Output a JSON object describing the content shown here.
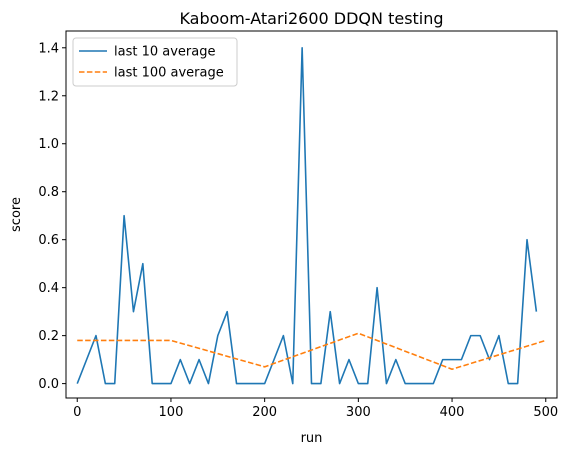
{
  "chart_data": {
    "type": "line",
    "title": "Kaboom-Atari2600 DDQN testing",
    "xlabel": "run",
    "ylabel": "score",
    "xlim": [
      -12,
      512
    ],
    "ylim": [
      -0.06,
      1.47
    ],
    "xticks": [
      0,
      100,
      200,
      300,
      400,
      500
    ],
    "yticks": [
      0.0,
      0.2,
      0.4,
      0.6,
      0.8,
      1.0,
      1.2,
      1.4
    ],
    "xtick_labels": [
      "0",
      "100",
      "200",
      "300",
      "400",
      "500"
    ],
    "ytick_labels": [
      "0.0",
      "0.2",
      "0.4",
      "0.6",
      "0.8",
      "1.0",
      "1.2",
      "1.4"
    ],
    "grid": false,
    "legend_position": "top-left",
    "series": [
      {
        "name": "last 10 average",
        "color": "#1f77b4",
        "style": "solid",
        "x": [
          0,
          10,
          20,
          30,
          40,
          50,
          60,
          70,
          80,
          90,
          100,
          110,
          120,
          130,
          140,
          150,
          160,
          170,
          180,
          190,
          200,
          210,
          220,
          230,
          240,
          250,
          260,
          270,
          280,
          290,
          300,
          310,
          320,
          330,
          340,
          350,
          360,
          370,
          380,
          390,
          400,
          410,
          420,
          430,
          440,
          450,
          460,
          470,
          480,
          490
        ],
        "y": [
          0.0,
          0.1,
          0.2,
          0.0,
          0.0,
          0.7,
          0.3,
          0.5,
          0.0,
          0.0,
          0.0,
          0.1,
          0.0,
          0.1,
          0.0,
          0.2,
          0.3,
          0.0,
          0.0,
          0.0,
          0.0,
          0.1,
          0.2,
          0.0,
          1.4,
          0.0,
          0.0,
          0.3,
          0.0,
          0.1,
          0.0,
          0.0,
          0.4,
          0.0,
          0.1,
          0.0,
          0.0,
          0.0,
          0.0,
          0.1,
          0.1,
          0.1,
          0.2,
          0.2,
          0.1,
          0.2,
          0.0,
          0.0,
          0.6,
          0.3
        ]
      },
      {
        "name": "last 100 average",
        "color": "#ff7f0e",
        "style": "dashed",
        "x": [
          0,
          100,
          200,
          300,
          400,
          500
        ],
        "y": [
          0.18,
          0.18,
          0.07,
          0.21,
          0.06,
          0.18
        ]
      }
    ]
  }
}
